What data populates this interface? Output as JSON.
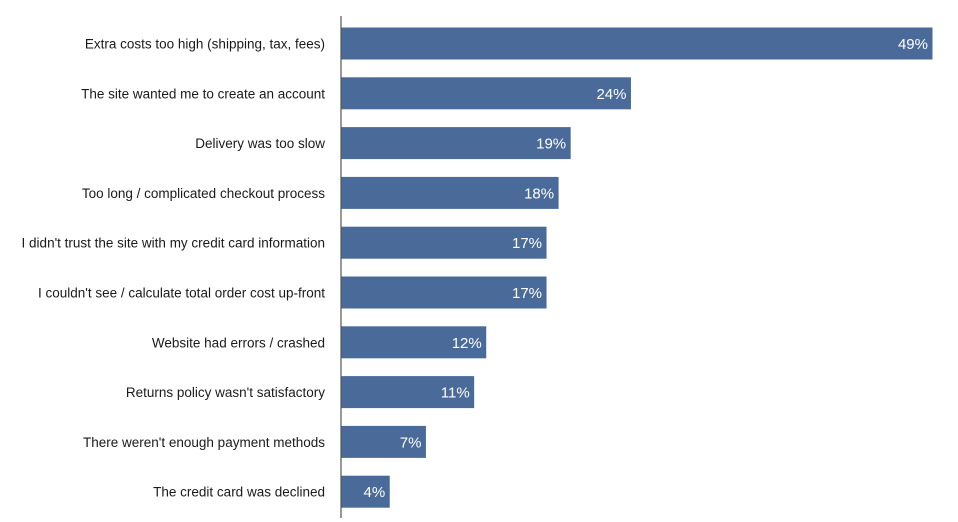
{
  "chart_data": {
    "type": "bar",
    "orientation": "horizontal",
    "title": "",
    "xlabel": "",
    "ylabel": "",
    "categories": [
      "Extra costs too high (shipping, tax, fees)",
      "The site wanted me to create an account",
      "Delivery was too slow",
      "Too long / complicated checkout process",
      "I didn't trust the site with my credit card information",
      "I couldn't see / calculate total order cost up-front",
      "Website had errors / crashed",
      "Returns policy wasn't satisfactory",
      "There weren't enough payment methods",
      "The credit card was declined"
    ],
    "values": [
      49,
      24,
      19,
      18,
      17,
      17,
      12,
      11,
      7,
      4
    ],
    "value_labels": [
      "49%",
      "24%",
      "19%",
      "18%",
      "17%",
      "17%",
      "12%",
      "11%",
      "7%",
      "4%"
    ],
    "xlim": [
      0,
      49
    ],
    "grid": false,
    "legend": "none",
    "bar_color": "#4a6b9a",
    "axis_color": "#555555"
  }
}
